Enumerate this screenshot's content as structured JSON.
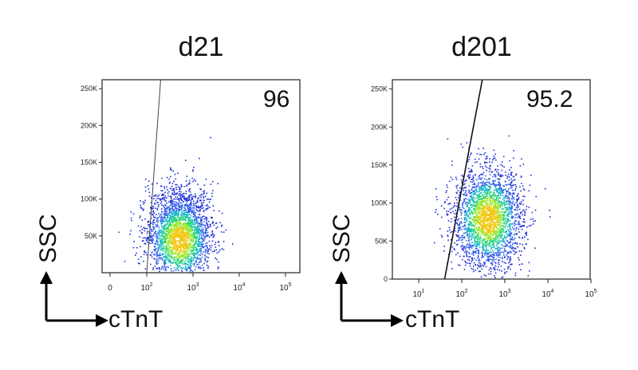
{
  "chart_data": [
    {
      "type": "scatter",
      "title": "d21",
      "xlabel": "cTnT",
      "ylabel": "SSC",
      "x_scale": "log",
      "y_scale": "linear",
      "x_ticks": [
        {
          "label": "0",
          "value": 0
        },
        {
          "label": "10",
          "sup": "2",
          "value": 100
        },
        {
          "label": "10",
          "sup": "3",
          "value": 1000
        },
        {
          "label": "10",
          "sup": "4",
          "value": 10000
        },
        {
          "label": "10",
          "sup": "5",
          "value": 100000
        }
      ],
      "y_ticks": [
        "50K",
        "100K",
        "150K",
        "200K",
        "250K"
      ],
      "y_tick_values": [
        50000,
        100000,
        150000,
        200000,
        250000
      ],
      "ylim": [
        0,
        262144
      ],
      "gate_value": "96",
      "gate_line": [
        {
          "x": 100,
          "y": 0
        },
        {
          "x": 200,
          "y": 262144
        }
      ],
      "population": {
        "center_x": 500,
        "center_y": 45000,
        "spread_x_decades": 0.35,
        "spread_y": 30000
      }
    },
    {
      "type": "scatter",
      "title": "d201",
      "xlabel": "cTnT",
      "ylabel": "SSC",
      "x_scale": "log",
      "y_scale": "linear",
      "x_ticks": [
        {
          "label": "10",
          "sup": "1",
          "value": 10
        },
        {
          "label": "10",
          "sup": "2",
          "value": 100
        },
        {
          "label": "10",
          "sup": "3",
          "value": 1000
        },
        {
          "label": "10",
          "sup": "4",
          "value": 10000
        },
        {
          "label": "10",
          "sup": "5",
          "value": 100000
        }
      ],
      "y_ticks": [
        "0",
        "50K",
        "100K",
        "150K",
        "200K",
        "250K"
      ],
      "y_tick_values": [
        0,
        50000,
        100000,
        150000,
        200000,
        250000
      ],
      "ylim": [
        0,
        262144
      ],
      "gate_value": "95.2",
      "gate_line": [
        {
          "x": 40,
          "y": 0
        },
        {
          "x": 300,
          "y": 262144
        }
      ],
      "population": {
        "center_x": 400,
        "center_y": 80000,
        "spread_x_decades": 0.4,
        "spread_y": 33000
      }
    }
  ]
}
